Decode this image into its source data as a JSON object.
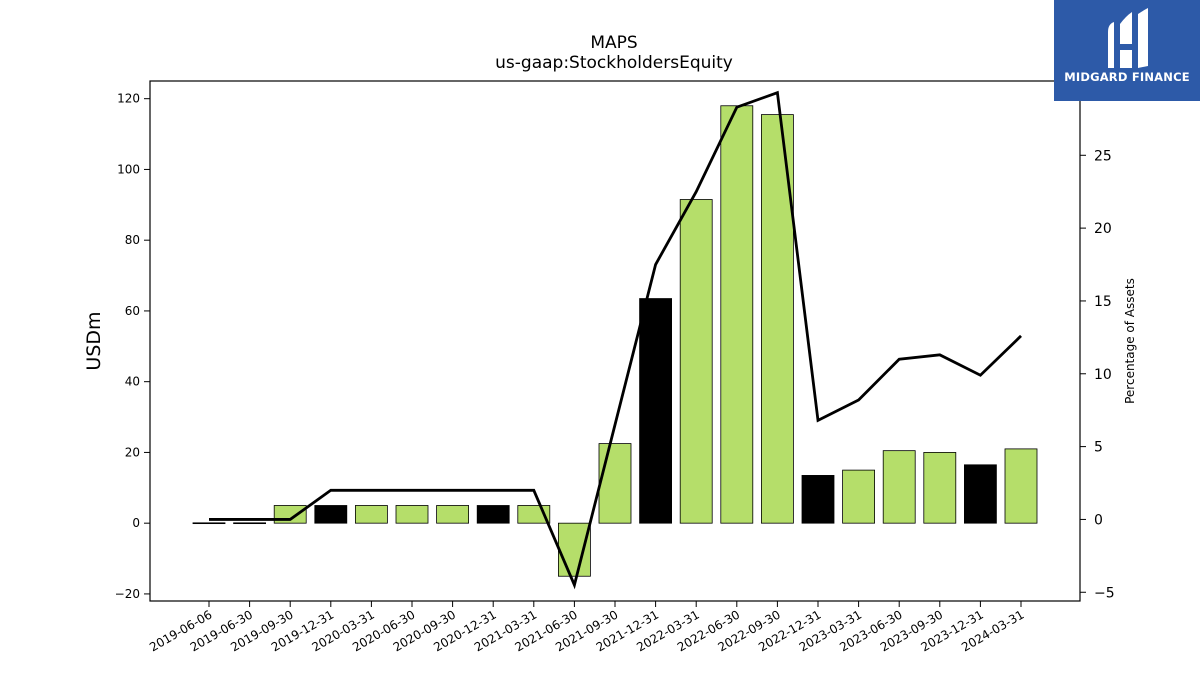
{
  "brand": {
    "name": "MIDGARD FINANCE",
    "logo_icon": "midgard-logo-icon",
    "color": "#2d5aa8"
  },
  "colors": {
    "bar_primary": "#b5de6a",
    "bar_alt": "#000000",
    "line": "#000000"
  },
  "chart_data": {
    "type": "bar",
    "title": "MAPS",
    "subtitle": "us-gaap:StockholdersEquity",
    "ylabel": "USDm",
    "y2label": "Percentage of Assets",
    "ylim": [
      -22,
      125
    ],
    "y2lim": [
      -5.6,
      30.1
    ],
    "yticks": [
      -20,
      0,
      20,
      40,
      60,
      80,
      100,
      120
    ],
    "y2ticks": [
      -5,
      0,
      5,
      10,
      15,
      20,
      25
    ],
    "grid": false,
    "legend": "none",
    "categories": [
      "2019-06-06",
      "2019-06-30",
      "2019-09-30",
      "2019-12-31",
      "2020-03-31",
      "2020-06-30",
      "2020-09-30",
      "2020-12-31",
      "2021-03-31",
      "2021-06-30",
      "2021-09-30",
      "2021-12-31",
      "2022-03-31",
      "2022-06-30",
      "2022-09-30",
      "2022-12-31",
      "2023-03-31",
      "2023-06-30",
      "2023-09-30",
      "2023-12-31",
      "2024-03-31"
    ],
    "series": [
      {
        "axis": "left",
        "type": "bar",
        "values": [
          0.1,
          0.1,
          5,
          5,
          5,
          5,
          5,
          5,
          5,
          -15,
          22.5,
          63.5,
          91.5,
          118,
          115.5,
          13.5,
          15,
          20.5,
          20,
          16.5,
          21
        ],
        "colors": [
          "#000000",
          "#000000",
          "#b5de6a",
          "#000000",
          "#b5de6a",
          "#b5de6a",
          "#b5de6a",
          "#000000",
          "#b5de6a",
          "#b5de6a",
          "#b5de6a",
          "#000000",
          "#b5de6a",
          "#b5de6a",
          "#b5de6a",
          "#000000",
          "#b5de6a",
          "#b5de6a",
          "#b5de6a",
          "#000000",
          "#b5de6a"
        ]
      },
      {
        "axis": "right",
        "type": "line",
        "values": [
          0,
          0,
          0,
          2,
          2,
          2,
          2,
          2,
          2,
          -4.5,
          6.5,
          17.5,
          22.5,
          28.3,
          29.3,
          6.8,
          8.2,
          11,
          11.3,
          9.9,
          12.6
        ]
      }
    ]
  }
}
